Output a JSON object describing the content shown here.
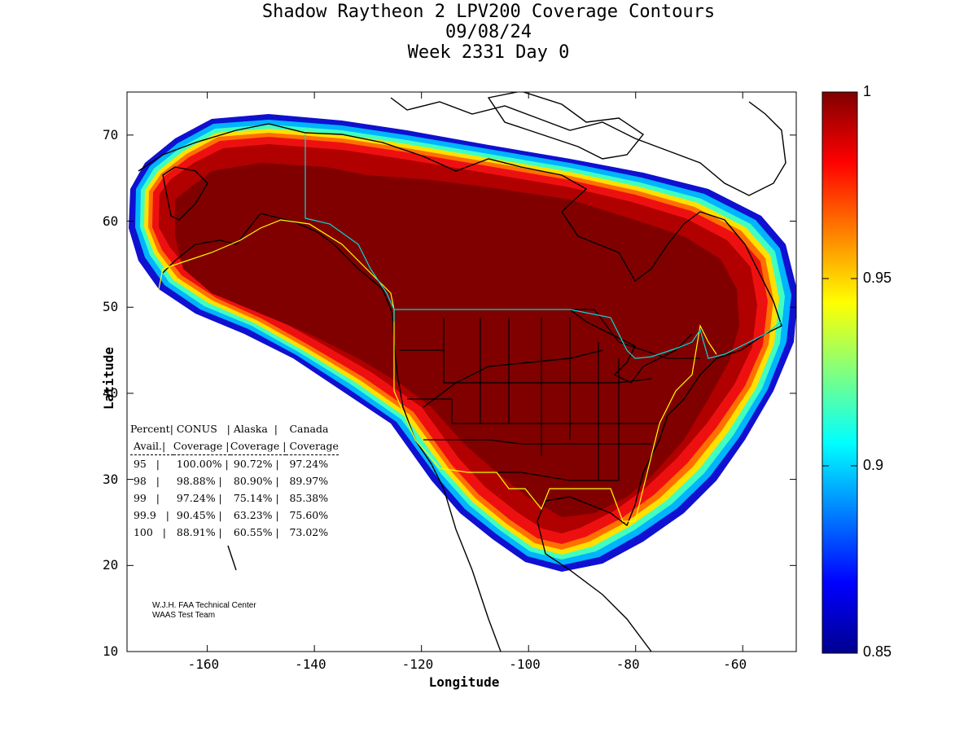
{
  "title": {
    "line1": "Shadow Raytheon 2 LPV200 Coverage Contours",
    "line2": "09/08/24",
    "line3": "Week 2331 Day 0"
  },
  "axes": {
    "xlabel": "Longitude",
    "ylabel": "Latitude",
    "xticks": [
      -160,
      -140,
      -120,
      -100,
      -80,
      -60
    ],
    "yticks": [
      10,
      20,
      30,
      40,
      50,
      60,
      70
    ],
    "xlim": [
      -175,
      -50
    ],
    "ylim": [
      10,
      75
    ]
  },
  "colorbar": {
    "ticks": [
      "1",
      "0.95",
      "0.9",
      "0.85"
    ],
    "range": [
      0.85,
      1.0
    ],
    "colormap": "jet"
  },
  "availability_table": {
    "header1": [
      "Percent",
      "CONUS",
      "Alaska",
      "Canada"
    ],
    "header2": [
      "Avail.",
      "Coverage",
      "Coverage",
      "Coverage"
    ],
    "rows": [
      [
        "95",
        "100.00%",
        "90.72%",
        "97.24%"
      ],
      [
        "98",
        "98.88%",
        "80.90%",
        "89.97%"
      ],
      [
        "99",
        "97.24%",
        "75.14%",
        "85.38%"
      ],
      [
        "99.9",
        "90.45%",
        "63.23%",
        "75.60%"
      ],
      [
        "100",
        "88.91%",
        "60.55%",
        "73.02%"
      ]
    ]
  },
  "credit": {
    "line1": "W.J.H. FAA Technical Center",
    "line2": "WAAS Test Team"
  },
  "colors": {
    "max_coverage": "#800000",
    "service_boundary": "#ffff00",
    "border": "#00cccc"
  }
}
